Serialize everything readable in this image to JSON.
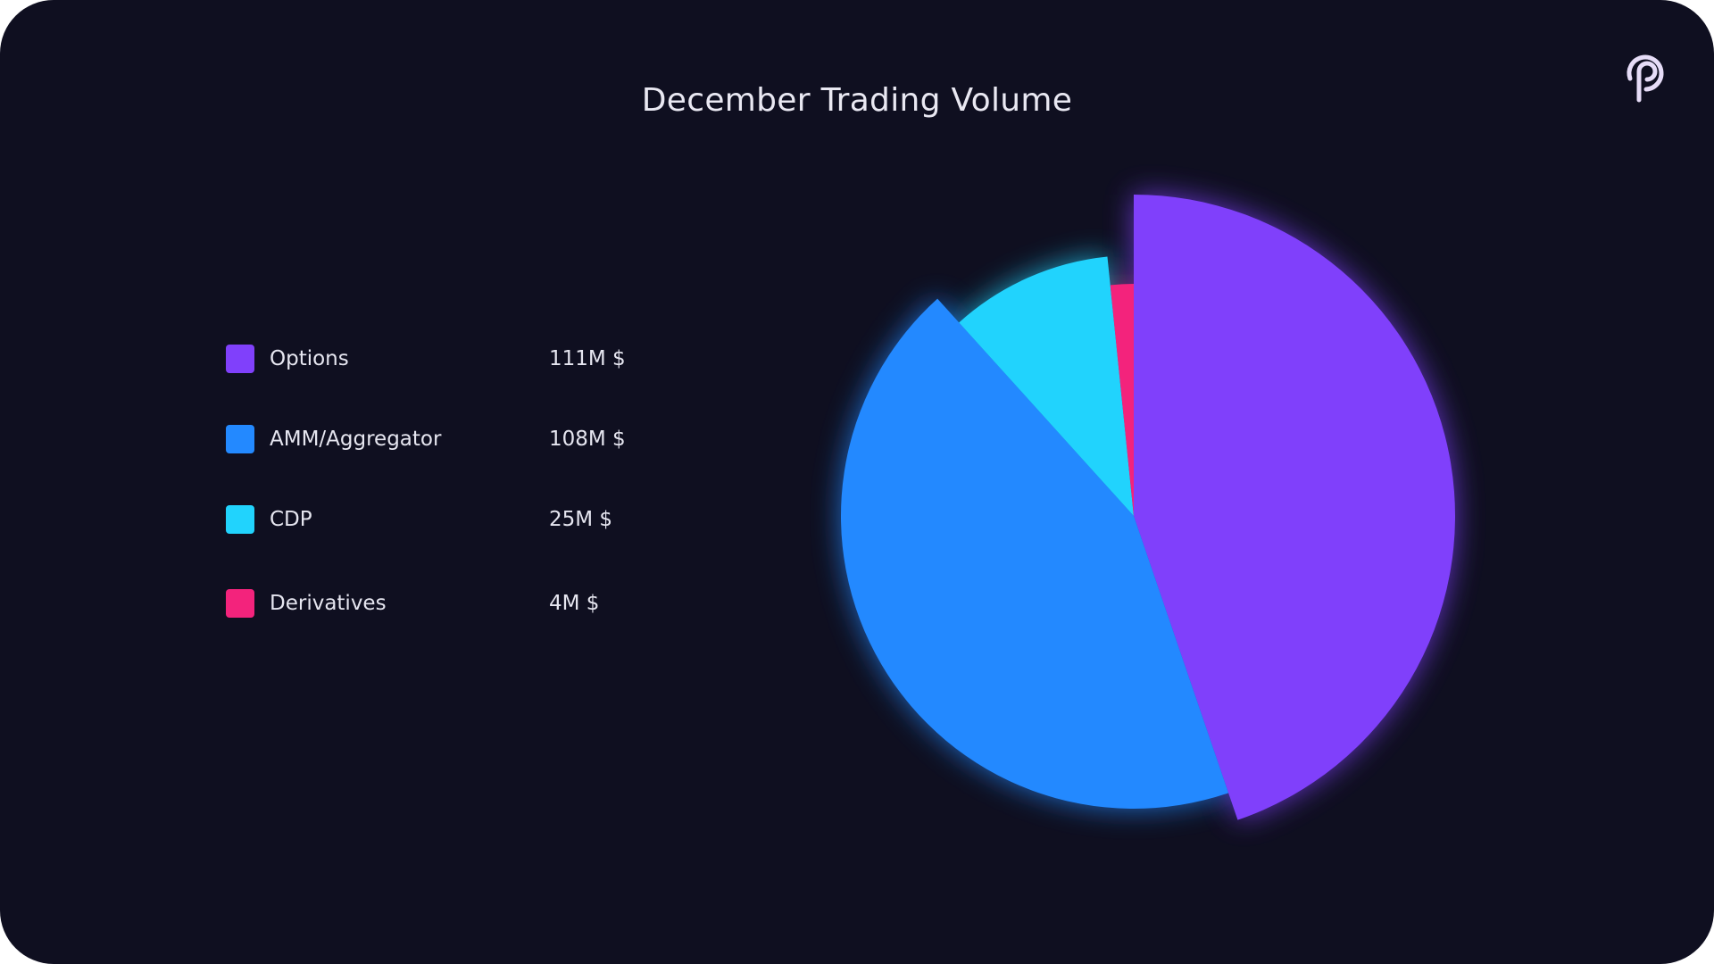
{
  "chart_data": {
    "type": "pie",
    "title": "December Trading Volume",
    "series": [
      {
        "name": "Options",
        "value": 111,
        "label": "111M $",
        "color": "#8040fb"
      },
      {
        "name": "AMM/Aggregator",
        "value": 108,
        "label": "108M $",
        "color": "#2389ff"
      },
      {
        "name": "CDP",
        "value": 25,
        "label": "25M $",
        "color": "#21d3fd"
      },
      {
        "name": "Derivatives",
        "value": 4,
        "label": "4M $",
        "color": "#f3237c"
      }
    ],
    "unit": "M $",
    "legend_position": "left"
  },
  "logo": {
    "icon": "pendle-logo-icon",
    "color": "#e6dcf7"
  },
  "background_color": "#0f0f20"
}
